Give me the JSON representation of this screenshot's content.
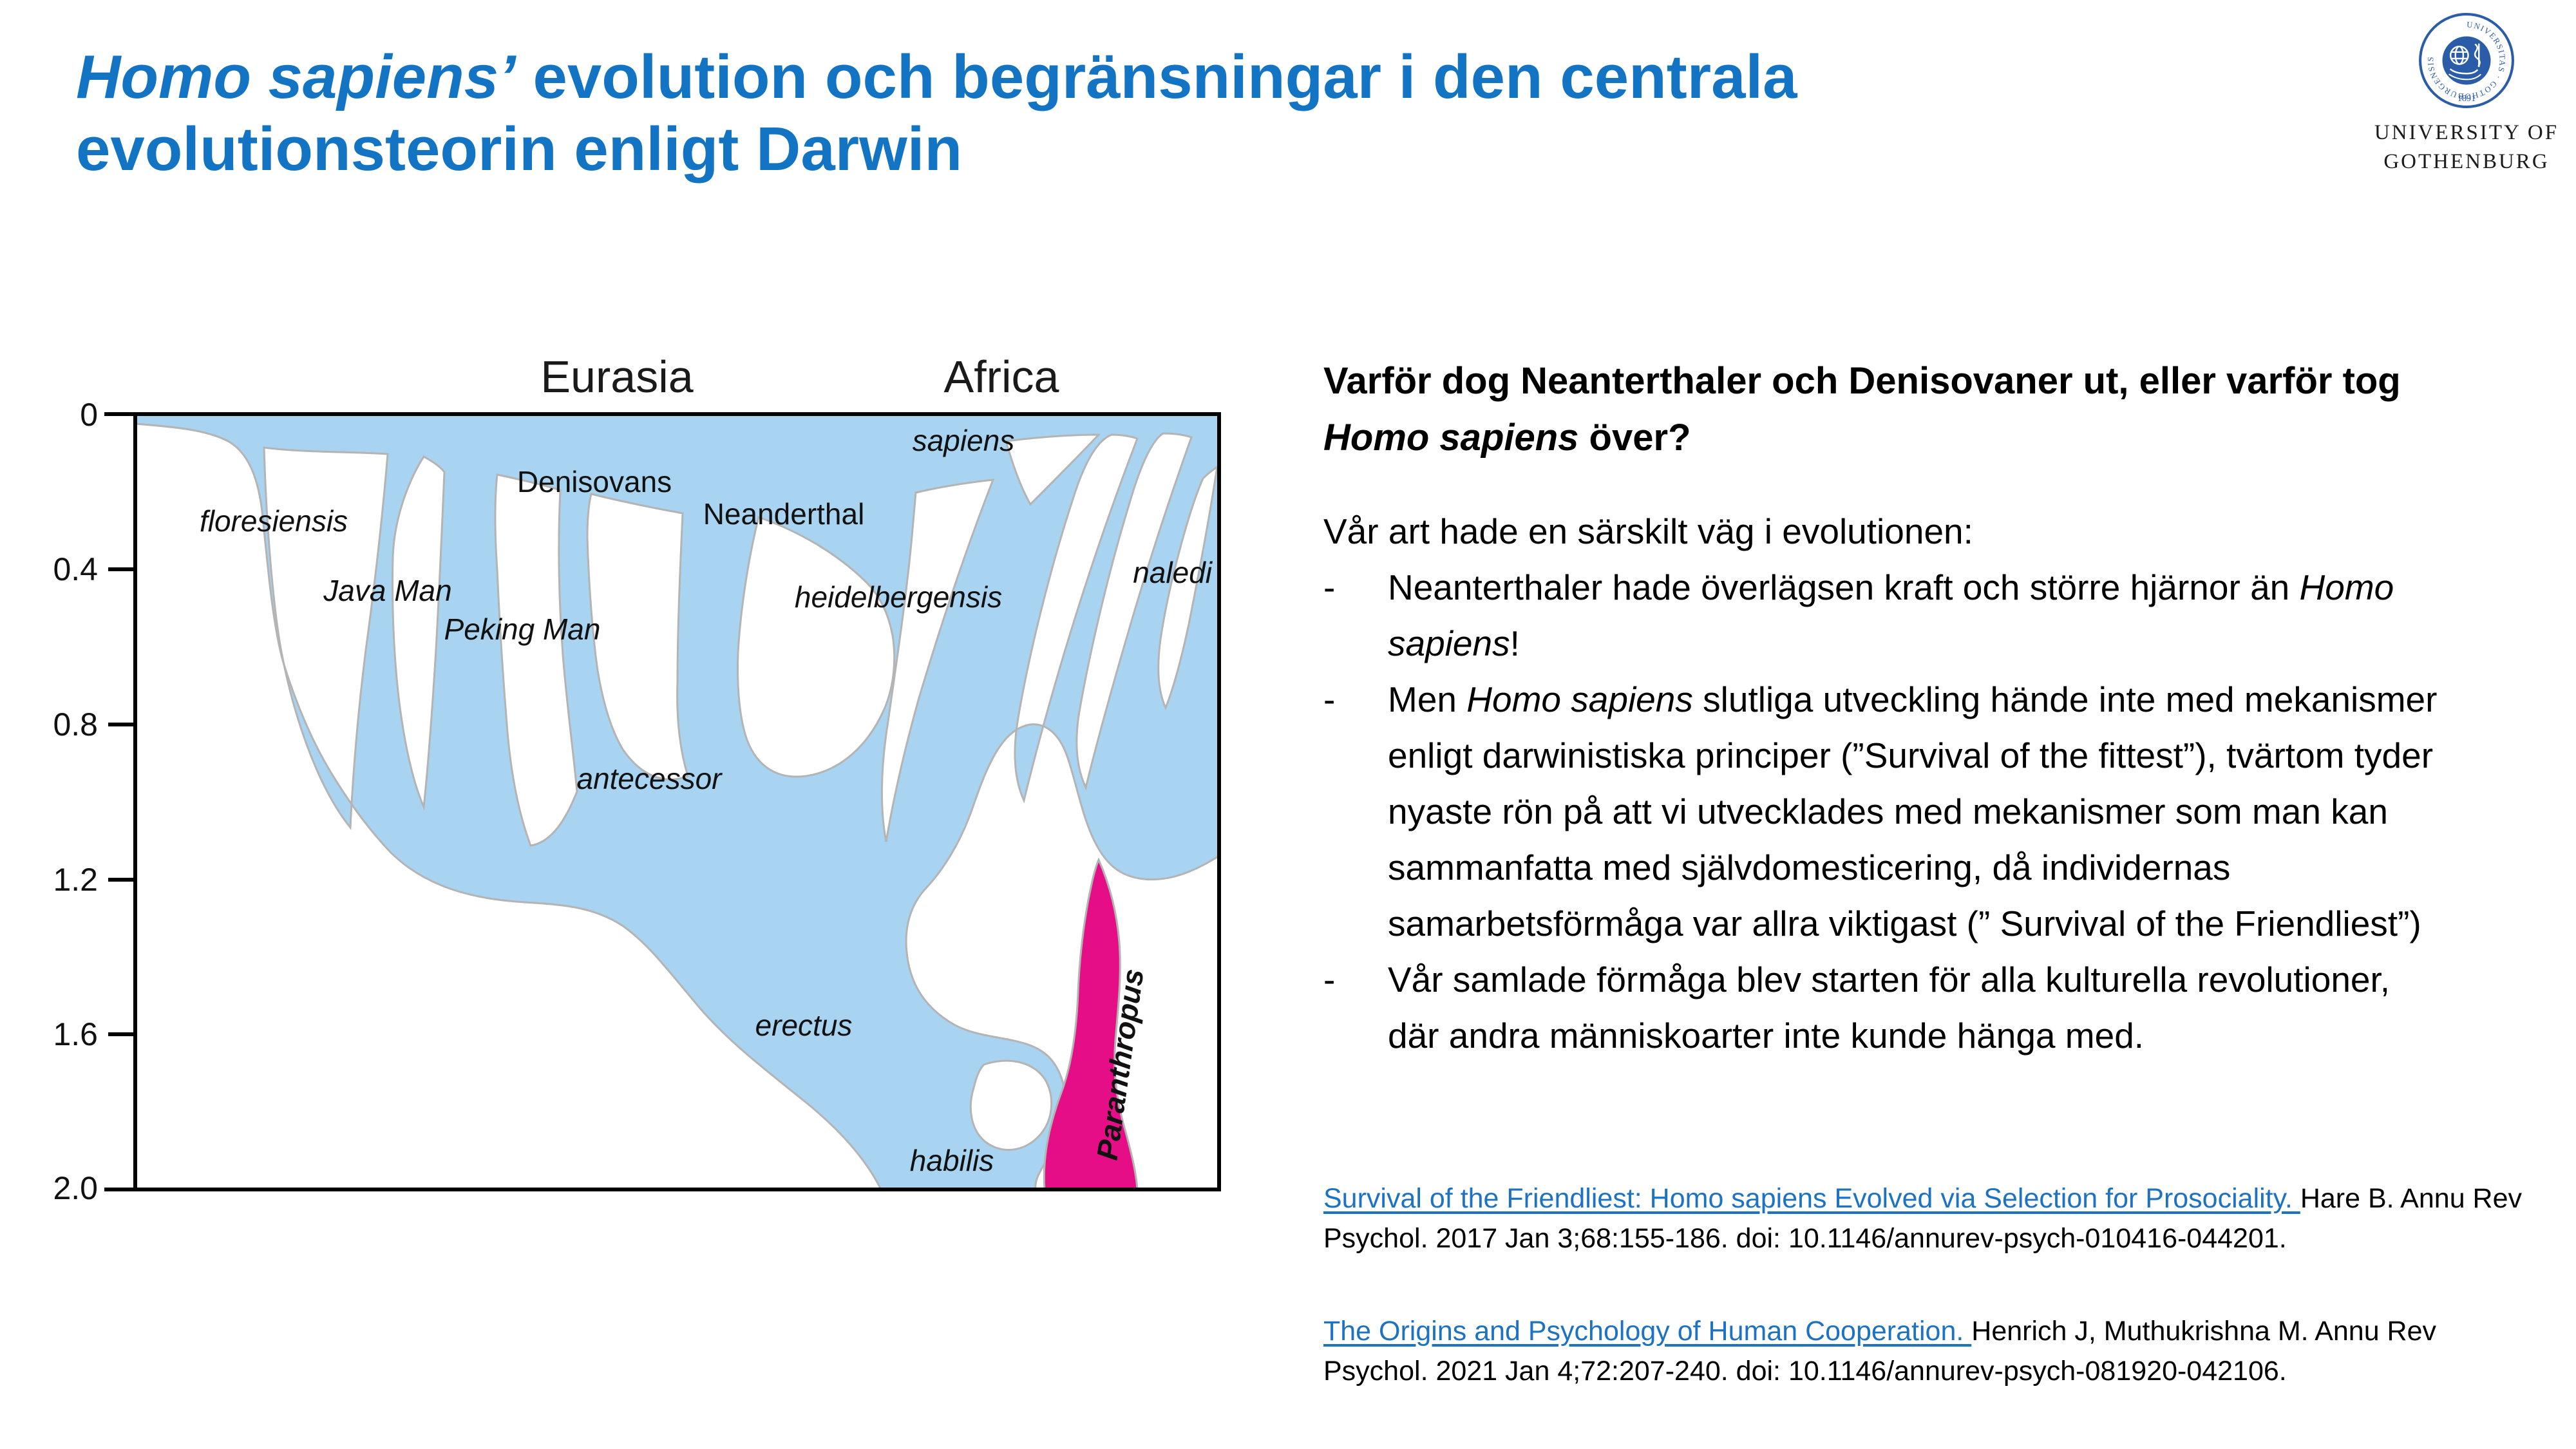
{
  "slide": {
    "title_segments": [
      {
        "t": "Homo sapiens’",
        "i": true
      },
      {
        "t": " evolution och begränsningar i den centrala evolutionsteorin enligt Darwin"
      }
    ],
    "title_color": "#1474c4"
  },
  "logo": {
    "seal_text": "UNIVERSITAS · GOTHOBURGENSIS",
    "seal_year": "1891",
    "seal_color": "#2a5ca8",
    "institution_line1": "UNIVERSITY OF",
    "institution_line2": "GOTHENBURG"
  },
  "chart_data": {
    "type": "area",
    "subtype": "braided-stream phylogeny of genus Homo",
    "region_headers": [
      "Eurasia",
      "Africa"
    ],
    "y_ticks": [
      "0",
      "0.4",
      "0.8",
      "1.2",
      "1.6",
      "2.0"
    ],
    "y_range": [
      0,
      2.0
    ],
    "grid": false,
    "legend": false,
    "labels": [
      {
        "text": "floresiensis",
        "italic": true,
        "approx_mya": 0.3
      },
      {
        "text": "Denisovans",
        "italic": false,
        "approx_mya": 0.2
      },
      {
        "text": "Neanderthal",
        "italic": false,
        "approx_mya": 0.28
      },
      {
        "text": "sapiens",
        "italic": true,
        "approx_mya": 0.1
      },
      {
        "text": "heidelbergensis",
        "italic": true,
        "approx_mya": 0.43
      },
      {
        "text": "naledi",
        "italic": true,
        "approx_mya": 0.43
      },
      {
        "text": "Java Man",
        "italic": true,
        "approx_mya": 0.48
      },
      {
        "text": "Peking Man",
        "italic": true,
        "approx_mya": 0.58
      },
      {
        "text": "antecessor",
        "italic": true,
        "approx_mya": 0.97
      },
      {
        "text": "erectus",
        "italic": true,
        "approx_mya": 1.6
      },
      {
        "text": "habilis",
        "italic": true,
        "approx_mya": 1.95
      },
      {
        "text": "Paranthropus",
        "italic": true,
        "approx_mya": 1.7
      }
    ],
    "colors": {
      "stream": "#a8d4f1",
      "outline": "#b4b4b4",
      "paranthropus": "#e50e86",
      "axis": "#000000"
    }
  },
  "panel": {
    "heading_segments": [
      {
        "t": "Varför dog Neanterthaler och Denisovaner ut, eller varför tog "
      },
      {
        "t": "Homo sapiens",
        "i": true
      },
      {
        "t": " över?"
      }
    ],
    "intro": "Vår art hade en särskilt väg i evolutionen:",
    "bullet_marker": "-",
    "bullets": [
      [
        {
          "t": "Neanterthaler hade överlägsen kraft och större hjärnor än "
        },
        {
          "t": "Homo sapiens",
          "i": true
        },
        {
          "t": "!"
        }
      ],
      [
        {
          "t": "Men "
        },
        {
          "t": "Homo sapiens",
          "i": true
        },
        {
          "t": " slutliga utveckling hände inte med mekanismer enligt darwinistiska principer (”Survival of the fittest”), tvärtom tyder nyaste rön på att vi utvecklades med mekanismer som man kan sammanfatta med självdomesticering, då individernas samarbetsförmåga var allra viktigast (” Survival of the Friendliest”)"
        }
      ],
      [
        {
          "t": "Vår samlade förmåga blev starten för alla kulturella revolutioner, där andra människoarter inte kunde hänga med."
        }
      ]
    ]
  },
  "references": [
    {
      "link": "Survival of the Friendliest: Homo sapiens Evolved via Selection for Prosociality. ",
      "rest": "Hare B. Annu Rev Psychol. 2017 Jan 3;68:155-186. doi: 10.1146/annurev-psych-010416-044201."
    },
    {
      "link": "The Origins and Psychology of Human Cooperation. ",
      "rest": "Henrich J, Muthukrishna M. Annu Rev Psychol. 2021 Jan 4;72:207-240. doi: 10.1146/annurev-psych-081920-042106."
    }
  ]
}
